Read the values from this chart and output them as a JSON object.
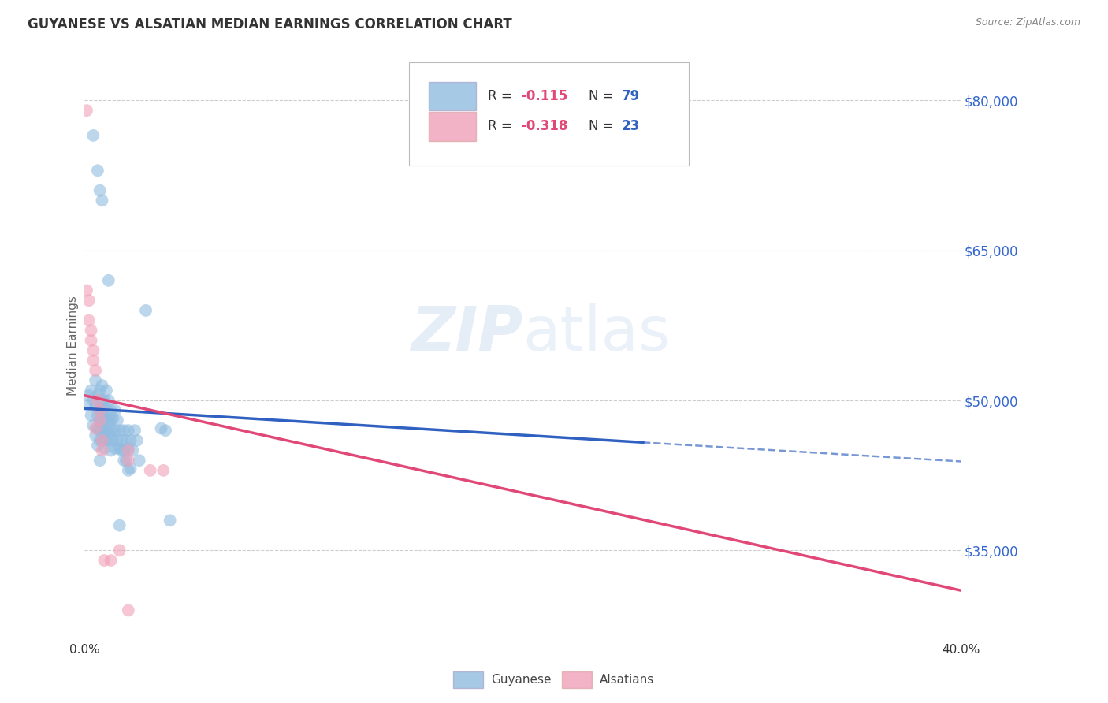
{
  "title": "GUYANESE VS ALSATIAN MEDIAN EARNINGS CORRELATION CHART",
  "source": "Source: ZipAtlas.com",
  "ylabel": "Median Earnings",
  "xlim": [
    0.0,
    0.4
  ],
  "ylim": [
    26000,
    85000
  ],
  "yticks": [
    35000,
    50000,
    65000,
    80000
  ],
  "ytick_labels": [
    "$35,000",
    "$50,000",
    "$65,000",
    "$80,000"
  ],
  "xticks": [
    0.0,
    0.1,
    0.2,
    0.3,
    0.4
  ],
  "xtick_labels": [
    "0.0%",
    "",
    "",
    "",
    "40.0%"
  ],
  "background_color": "#ffffff",
  "grid_color": "#c8c8c8",
  "watermark": "ZIPatlas",
  "legend_r_blue": "-0.115",
  "legend_n_blue": "79",
  "legend_r_pink": "-0.318",
  "legend_n_pink": "23",
  "blue_color": "#90bce0",
  "pink_color": "#f0a0b8",
  "blue_line_color": "#3060c0",
  "pink_line_color": "#e04878",
  "blue_scatter": [
    [
      0.001,
      49500
    ],
    [
      0.002,
      50500
    ],
    [
      0.003,
      51000
    ],
    [
      0.003,
      48500
    ],
    [
      0.004,
      50000
    ],
    [
      0.004,
      47500
    ],
    [
      0.005,
      52000
    ],
    [
      0.005,
      49500
    ],
    [
      0.005,
      46500
    ],
    [
      0.006,
      50500
    ],
    [
      0.006,
      48500
    ],
    [
      0.006,
      47200
    ],
    [
      0.006,
      45500
    ],
    [
      0.007,
      51000
    ],
    [
      0.007,
      49200
    ],
    [
      0.007,
      48000
    ],
    [
      0.007,
      47000
    ],
    [
      0.007,
      46000
    ],
    [
      0.007,
      44000
    ],
    [
      0.008,
      51500
    ],
    [
      0.008,
      50000
    ],
    [
      0.008,
      49000
    ],
    [
      0.008,
      48000
    ],
    [
      0.008,
      47000
    ],
    [
      0.008,
      46000
    ],
    [
      0.009,
      50000
    ],
    [
      0.009,
      49000
    ],
    [
      0.009,
      48200
    ],
    [
      0.009,
      47000
    ],
    [
      0.009,
      46000
    ],
    [
      0.009,
      45200
    ],
    [
      0.01,
      51000
    ],
    [
      0.01,
      49200
    ],
    [
      0.01,
      48000
    ],
    [
      0.01,
      47000
    ],
    [
      0.01,
      46000
    ],
    [
      0.011,
      50000
    ],
    [
      0.011,
      48000
    ],
    [
      0.011,
      47000
    ],
    [
      0.012,
      49000
    ],
    [
      0.012,
      48000
    ],
    [
      0.012,
      46200
    ],
    [
      0.012,
      45000
    ],
    [
      0.013,
      48200
    ],
    [
      0.013,
      47000
    ],
    [
      0.013,
      46000
    ],
    [
      0.014,
      49000
    ],
    [
      0.014,
      47000
    ],
    [
      0.014,
      45200
    ],
    [
      0.015,
      48000
    ],
    [
      0.015,
      46000
    ],
    [
      0.016,
      47000
    ],
    [
      0.016,
      45200
    ],
    [
      0.016,
      37500
    ],
    [
      0.017,
      46000
    ],
    [
      0.017,
      45000
    ],
    [
      0.018,
      47000
    ],
    [
      0.018,
      45000
    ],
    [
      0.018,
      44000
    ],
    [
      0.019,
      46000
    ],
    [
      0.019,
      44000
    ],
    [
      0.02,
      47000
    ],
    [
      0.02,
      45200
    ],
    [
      0.02,
      43000
    ],
    [
      0.021,
      46000
    ],
    [
      0.022,
      45000
    ],
    [
      0.023,
      47000
    ],
    [
      0.024,
      46000
    ],
    [
      0.025,
      44000
    ],
    [
      0.028,
      59000
    ],
    [
      0.035,
      47200
    ],
    [
      0.037,
      47000
    ],
    [
      0.004,
      76500
    ],
    [
      0.006,
      73000
    ],
    [
      0.007,
      71000
    ],
    [
      0.008,
      70000
    ],
    [
      0.011,
      62000
    ],
    [
      0.039,
      38000
    ],
    [
      0.021,
      43200
    ]
  ],
  "pink_scatter": [
    [
      0.001,
      79000
    ],
    [
      0.001,
      61000
    ],
    [
      0.002,
      60000
    ],
    [
      0.002,
      58000
    ],
    [
      0.003,
      57000
    ],
    [
      0.003,
      56000
    ],
    [
      0.004,
      55000
    ],
    [
      0.004,
      54000
    ],
    [
      0.005,
      53000
    ],
    [
      0.005,
      47200
    ],
    [
      0.006,
      50000
    ],
    [
      0.007,
      49000
    ],
    [
      0.007,
      48000
    ],
    [
      0.008,
      46000
    ],
    [
      0.008,
      45000
    ],
    [
      0.009,
      34000
    ],
    [
      0.012,
      34000
    ],
    [
      0.016,
      35000
    ],
    [
      0.02,
      45000
    ],
    [
      0.02,
      44000
    ],
    [
      0.03,
      43000
    ],
    [
      0.036,
      43000
    ],
    [
      0.02,
      29000
    ]
  ],
  "blue_line": {
    "x0": 0.0,
    "y0": 49200,
    "x1": 0.255,
    "y1": 45800
  },
  "blue_dashed_line": {
    "x0": 0.255,
    "y0": 45800,
    "x1": 0.4,
    "y1": 43900
  },
  "pink_line": {
    "x0": 0.0,
    "y0": 50500,
    "x1": 0.4,
    "y1": 31000
  }
}
